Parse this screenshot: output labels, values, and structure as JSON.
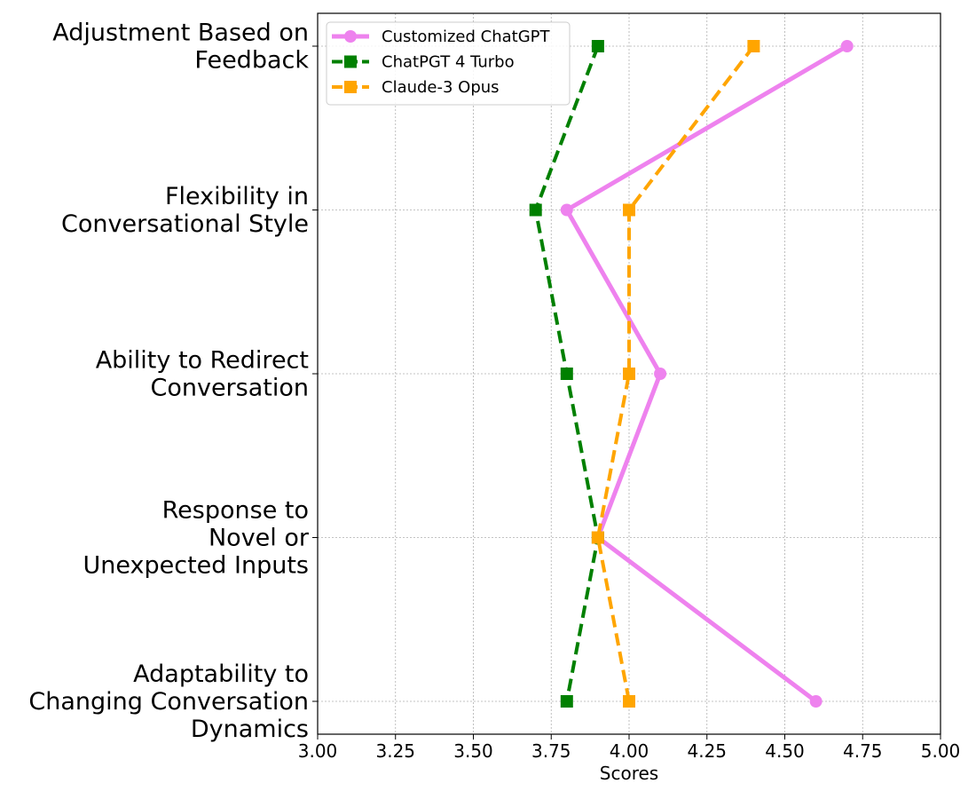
{
  "chart_data": {
    "type": "line",
    "orientation": "horizontal",
    "title": "",
    "xlabel": "Scores",
    "ylabel": "",
    "xlim": [
      3.0,
      5.0
    ],
    "xticks": [
      3.0,
      3.25,
      3.5,
      3.75,
      4.0,
      4.25,
      4.5,
      4.75,
      5.0
    ],
    "xtick_labels": [
      "3.00",
      "3.25",
      "3.50",
      "3.75",
      "4.00",
      "4.25",
      "4.50",
      "4.75",
      "5.00"
    ],
    "grid": true,
    "legend_position": "top-left",
    "categories": [
      [
        "Adjustment Based on",
        "Feedback"
      ],
      [
        "Flexibility in",
        "Conversational Style"
      ],
      [
        "Ability to Redirect",
        "Conversation"
      ],
      [
        "Response to",
        "Novel or",
        "Unexpected Inputs"
      ],
      [
        "Adaptability to",
        "Changing Conversation",
        "Dynamics"
      ]
    ],
    "series": [
      {
        "name": "Customized ChatGPT",
        "color": "#ee82ee",
        "linestyle": "solid",
        "marker": "circle",
        "values": [
          4.7,
          3.8,
          4.1,
          3.9,
          4.6
        ]
      },
      {
        "name": "ChatPGT 4 Turbo",
        "color": "#008000",
        "linestyle": "dashed",
        "marker": "square",
        "values": [
          3.9,
          3.7,
          3.8,
          3.9,
          3.8
        ]
      },
      {
        "name": "Claude-3 Opus",
        "color": "#ffa500",
        "linestyle": "dashed",
        "marker": "square",
        "values": [
          4.4,
          4.0,
          4.0,
          3.9,
          4.0
        ]
      }
    ]
  }
}
